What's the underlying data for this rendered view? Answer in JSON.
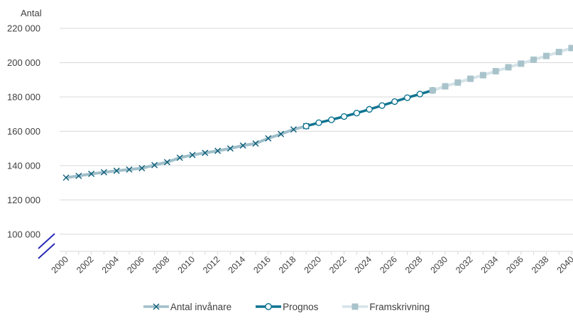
{
  "chart_data": {
    "type": "line",
    "ylabel": "Antal",
    "ylim": [
      90000,
      220000
    ],
    "yticks": [
      100000,
      120000,
      140000,
      160000,
      180000,
      200000,
      220000
    ],
    "ytick_labels": [
      "100 000",
      "120 000",
      "140 000",
      "160 000",
      "180 000",
      "200 000",
      "220 000"
    ],
    "axis_break": true,
    "grid": true,
    "legend_position": "bottom",
    "xtick_labels": [
      "2000",
      "2002",
      "2004",
      "2006",
      "2008",
      "2010",
      "2012",
      "2014",
      "2016",
      "2018",
      "2020",
      "2022",
      "2024",
      "2026",
      "2028",
      "2030",
      "2032",
      "2034",
      "2036",
      "2038",
      "2040"
    ],
    "series": [
      {
        "name": "Antal invånare",
        "color": "#9fbfca",
        "marker_color": "#0e5f7a",
        "marker": "x",
        "x": [
          2000,
          2001,
          2002,
          2003,
          2004,
          2005,
          2006,
          2007,
          2008,
          2009,
          2010,
          2011,
          2012,
          2013,
          2014,
          2015,
          2016,
          2017,
          2018,
          2019
        ],
        "values": [
          133000,
          134000,
          135200,
          136100,
          137000,
          137700,
          138500,
          140300,
          142000,
          144600,
          146200,
          147400,
          148600,
          150000,
          151700,
          152900,
          155900,
          158400,
          161100,
          163000
        ]
      },
      {
        "name": "Prognos",
        "color": "#0e7490",
        "marker": "circle",
        "x": [
          2019,
          2020,
          2021,
          2022,
          2023,
          2024,
          2025,
          2026,
          2027,
          2028,
          2029
        ],
        "values": [
          163000,
          165000,
          166700,
          168600,
          170600,
          172800,
          175000,
          177300,
          179600,
          181700,
          183800
        ]
      },
      {
        "name": "Framskrivning",
        "color": "#d5e3e8",
        "marker_color": "#a9c3cb",
        "marker": "square",
        "x": [
          2029,
          2030,
          2031,
          2032,
          2033,
          2034,
          2035,
          2036,
          2037,
          2038,
          2039,
          2040
        ],
        "values": [
          183800,
          186200,
          188400,
          190600,
          192700,
          195000,
          197300,
          199400,
          201700,
          203900,
          206200,
          208500
        ]
      }
    ]
  }
}
